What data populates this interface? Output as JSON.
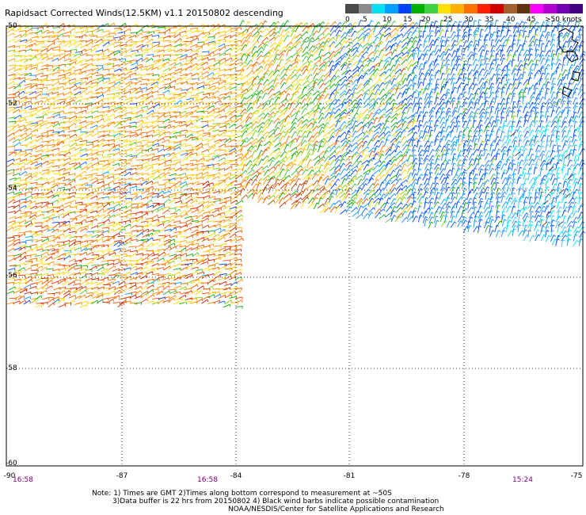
{
  "title": "Rapidsact Corrected Winds(12.5KM) v1.1 20150802 descending",
  "legend": {
    "labels": [
      "0",
      "5",
      "10",
      "15",
      "20",
      "25",
      "30",
      "35",
      "40",
      "45",
      ">50 knots"
    ],
    "colors": [
      "#4a4a4a",
      "#8a8a8a",
      "#00e0f0",
      "#00a0ff",
      "#0040ff",
      "#00b000",
      "#40d040",
      "#ffe000",
      "#ffb000",
      "#ff7000",
      "#ff2000",
      "#d00000",
      "#a06030",
      "#603010",
      "#ff00ff",
      "#b000d0",
      "#7000b0",
      "#400080"
    ]
  },
  "latitudes": [
    "-50",
    "-52",
    "-54",
    "-56",
    "-58",
    "-60"
  ],
  "longitudes": [
    "-90",
    "-87",
    "-84",
    "-81",
    "-78",
    "-75"
  ],
  "times": [
    {
      "label": "16:58"
    },
    {
      "label": "16:58"
    },
    {
      "label": "15:24"
    }
  ],
  "notes": [
    "Note: 1) Times are GMT 2)Times along bottom correspond to measurement at ~50S",
    "3)Data buffer is 22 hrs from 20150802 4) Black wind barbs indicate possible contamination",
    "NOAA/NESDIS/Center for Satellite Applications and Research"
  ]
}
